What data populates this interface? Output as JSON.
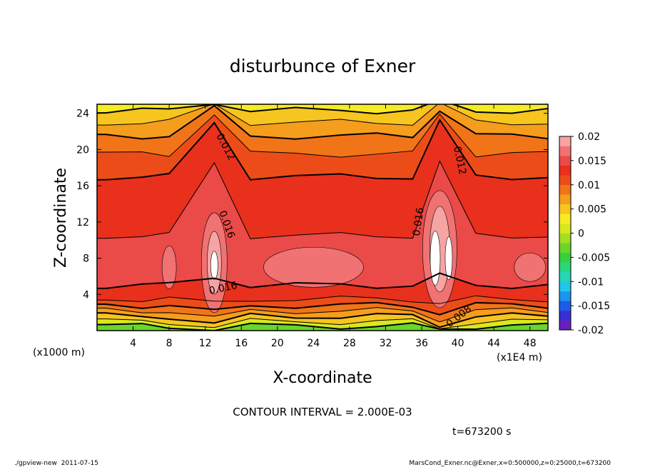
{
  "chart_data": {
    "type": "heatmap",
    "title": "disturbunce of Exner",
    "xlabel": "X-coordinate",
    "ylabel": "Z-coordinate",
    "x_unit": "(x1E4 m)",
    "z_unit": "(x1000 m)",
    "xlim": [
      0,
      50
    ],
    "ylim": [
      0,
      25
    ],
    "x_ticks": [
      "4",
      "8",
      "12",
      "16",
      "20",
      "24",
      "28",
      "32",
      "36",
      "40",
      "44",
      "48"
    ],
    "y_ticks": [
      "4",
      "8",
      "12",
      "16",
      "20",
      "24"
    ],
    "colorbar": {
      "range": [
        -0.02,
        0.02
      ],
      "labels": [
        "0.02",
        "0.015",
        "0.01",
        "0.005",
        "0",
        "-0.005",
        "-0.01",
        "-0.015",
        "-0.02"
      ],
      "colors": [
        "#6a1fbf",
        "#3a2fd0",
        "#1e5be8",
        "#1b95f0",
        "#22c5ea",
        "#26d6b4",
        "#2ad87a",
        "#35d140",
        "#6ad62a",
        "#a4df22",
        "#d8e81f",
        "#f5ed22",
        "#f7c51f",
        "#f59d1c",
        "#f17418",
        "#ec4d18",
        "#e8301c",
        "#ea4a48",
        "#f07272",
        "#f7a4a4"
      ]
    },
    "contour_interval": "CONTOUR INTERVAL = 2.000E-03",
    "contour_labels": [
      "0.012",
      "0.012",
      "0.016",
      "0.016",
      "0.016",
      "0.008"
    ],
    "time_label": "t=673200 s",
    "footer_left": "./gpview-new  2011-07-15",
    "footer_right": "MarsCond_Exner.nc@Exner,x=0:500000,z=0:25000,t=673200",
    "columns": [
      {
        "x": 1,
        "ridge": false
      },
      {
        "x": 5,
        "ridge": false
      },
      {
        "x": 8,
        "ridge": false
      },
      {
        "x": 13,
        "ridge": true
      },
      {
        "x": 17,
        "ridge": false
      },
      {
        "x": 22,
        "ridge": false
      },
      {
        "x": 27,
        "ridge": false
      },
      {
        "x": 31,
        "ridge": false
      },
      {
        "x": 35,
        "ridge": false
      },
      {
        "x": 38,
        "ridge": true
      },
      {
        "x": 42,
        "ridge": false
      },
      {
        "x": 46,
        "ridge": false
      },
      {
        "x": 50,
        "ridge": false
      }
    ]
  }
}
